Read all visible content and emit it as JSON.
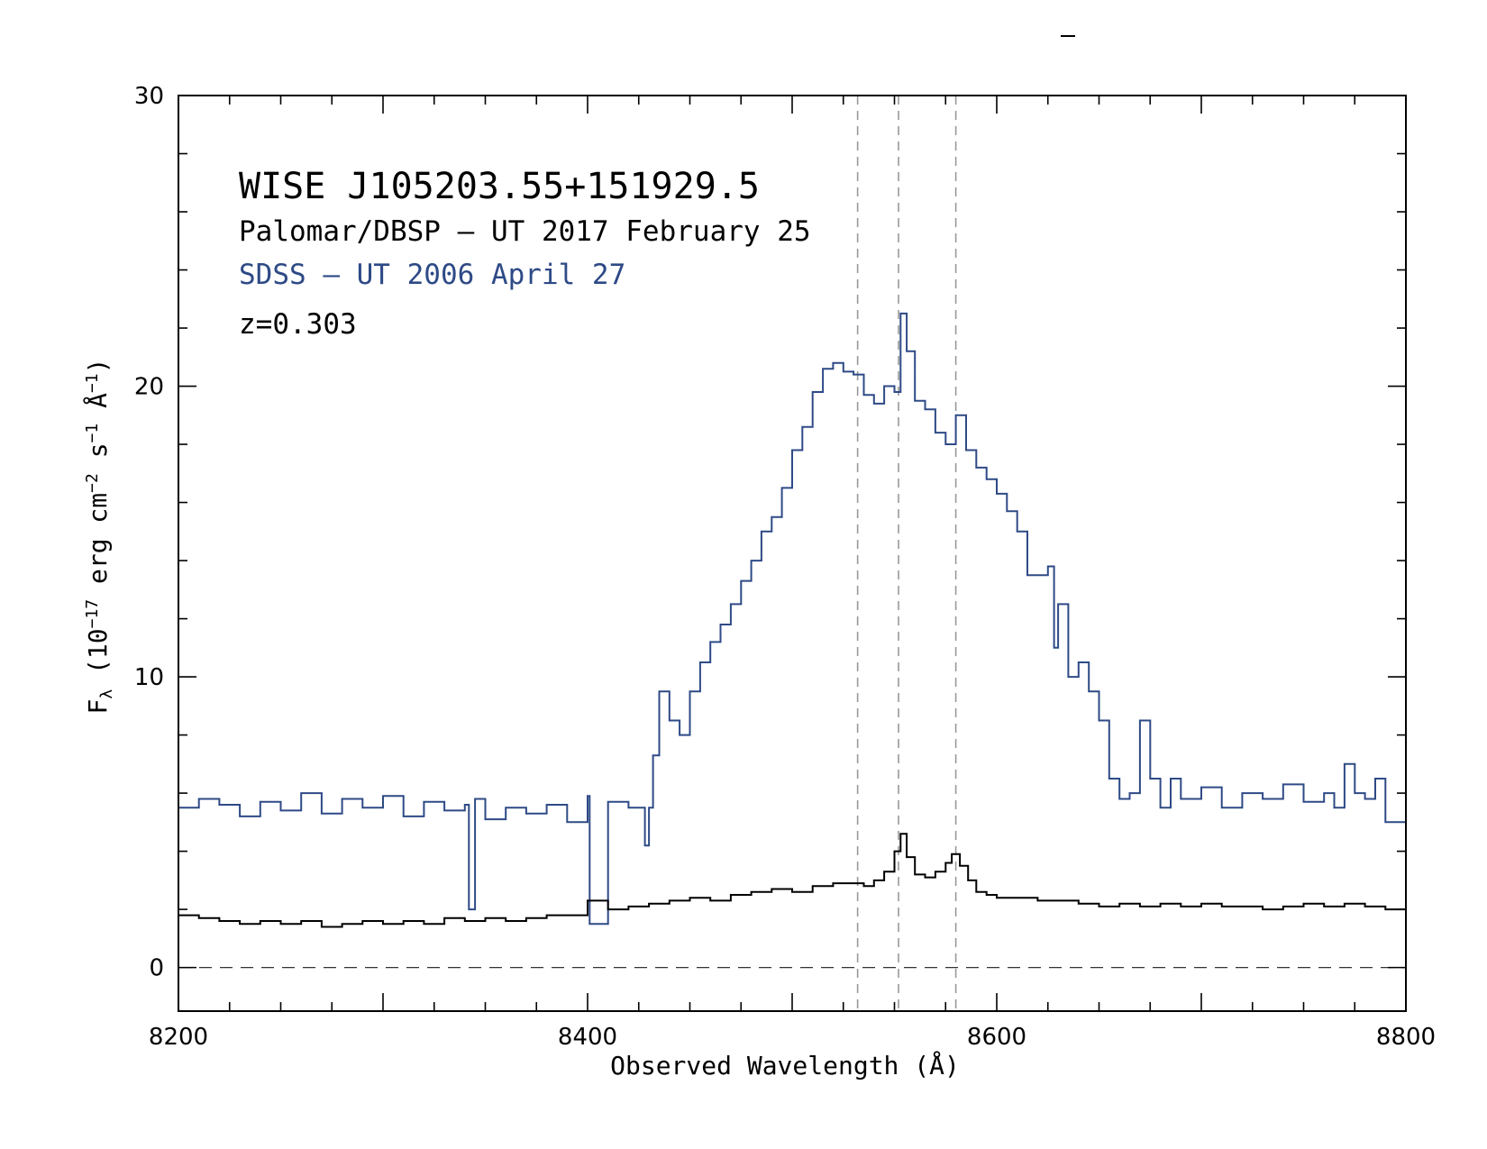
{
  "chart_data": {
    "type": "line",
    "style": "step",
    "xlabel": "Observed Wavelength (Å)",
    "ylabel": "F",
    "ylabel_subscript": "λ",
    "ylabel_units_prefix": " (10",
    "ylabel_exp1": "−17",
    "ylabel_units_mid": " erg cm",
    "ylabel_exp2": "−2",
    "ylabel_units_mid2": " s",
    "ylabel_exp3": "−1",
    "ylabel_units_end": " Å",
    "ylabel_exp4": "−1",
    "ylabel_close": ")",
    "xlim": [
      8200,
      8800
    ],
    "ylim": [
      -1.5,
      30
    ],
    "x_ticks": [
      8200,
      8400,
      8600,
      8800
    ],
    "x_tick_labels": [
      "8200",
      "8400",
      "8600",
      "8800"
    ],
    "y_ticks": [
      0,
      10,
      20,
      30
    ],
    "y_tick_labels": [
      "0",
      "10",
      "20",
      "30"
    ],
    "reference_lines_x": [
      8532,
      8552,
      8580
    ],
    "zero_line": 0,
    "grid": false,
    "legend": "none (text annotations top-left)",
    "annotations": {
      "object": "WISE J105203.55+151929.5",
      "palomar": "Palomar/DBSP – UT 2017 February 25",
      "sdss": "SDSS – UT 2006 April 27",
      "redshift": "z=0.303"
    },
    "series": [
      {
        "name": "SDSS – UT 2006 April 27",
        "color": "#2e4a86",
        "x": [
          8200,
          8210,
          8220,
          8230,
          8240,
          8250,
          8260,
          8270,
          8280,
          8290,
          8300,
          8310,
          8320,
          8330,
          8340,
          8342,
          8345,
          8350,
          8360,
          8370,
          8380,
          8390,
          8400,
          8401,
          8410,
          8420,
          8428,
          8430,
          8432,
          8435,
          8440,
          8445,
          8450,
          8455,
          8460,
          8465,
          8470,
          8475,
          8480,
          8485,
          8490,
          8495,
          8500,
          8505,
          8510,
          8515,
          8520,
          8525,
          8530,
          8535,
          8540,
          8545,
          8550,
          8553,
          8556,
          8560,
          8565,
          8570,
          8575,
          8580,
          8585,
          8590,
          8595,
          8600,
          8605,
          8610,
          8615,
          8620,
          8625,
          8628,
          8630,
          8635,
          8640,
          8645,
          8650,
          8655,
          8660,
          8665,
          8670,
          8675,
          8680,
          8685,
          8690,
          8700,
          8710,
          8720,
          8730,
          8740,
          8750,
          8760,
          8765,
          8770,
          8775,
          8780,
          8785,
          8790,
          8800
        ],
        "y": [
          5.5,
          5.8,
          5.6,
          5.2,
          5.7,
          5.4,
          6.0,
          5.3,
          5.8,
          5.5,
          5.9,
          5.2,
          5.7,
          5.4,
          5.6,
          2.0,
          5.8,
          5.1,
          5.5,
          5.3,
          5.6,
          5.0,
          5.9,
          1.5,
          5.7,
          5.5,
          4.2,
          5.5,
          7.3,
          9.5,
          8.5,
          8.0,
          9.5,
          10.5,
          11.2,
          11.8,
          12.5,
          13.3,
          14.0,
          15.0,
          15.5,
          16.5,
          17.8,
          18.6,
          19.8,
          20.6,
          20.8,
          20.5,
          20.4,
          19.7,
          19.4,
          20.0,
          19.8,
          22.5,
          21.2,
          19.5,
          19.2,
          18.4,
          18.0,
          19.0,
          17.8,
          17.2,
          16.8,
          16.3,
          15.7,
          15.0,
          13.5,
          13.5,
          13.8,
          11.0,
          12.5,
          10.0,
          10.5,
          9.5,
          8.5,
          6.5,
          5.8,
          6.0,
          8.5,
          6.5,
          5.5,
          6.5,
          5.8,
          6.2,
          5.5,
          6.0,
          5.8,
          6.3,
          5.7,
          6.0,
          5.5,
          7.0,
          6.0,
          5.8,
          6.5,
          5.0,
          5.8
        ]
      },
      {
        "name": "Palomar/DBSP – UT 2017 February 25",
        "color": "#000000",
        "x": [
          8200,
          8210,
          8220,
          8230,
          8240,
          8250,
          8260,
          8270,
          8280,
          8290,
          8300,
          8310,
          8320,
          8330,
          8340,
          8350,
          8360,
          8370,
          8380,
          8390,
          8400,
          8410,
          8420,
          8430,
          8440,
          8450,
          8460,
          8470,
          8480,
          8490,
          8500,
          8510,
          8520,
          8530,
          8535,
          8540,
          8545,
          8550,
          8553,
          8556,
          8560,
          8565,
          8570,
          8575,
          8578,
          8582,
          8586,
          8590,
          8595,
          8600,
          8610,
          8620,
          8630,
          8640,
          8650,
          8660,
          8670,
          8680,
          8690,
          8700,
          8710,
          8720,
          8730,
          8740,
          8750,
          8760,
          8770,
          8780,
          8790,
          8800
        ],
        "y": [
          1.8,
          1.7,
          1.6,
          1.5,
          1.6,
          1.5,
          1.6,
          1.4,
          1.5,
          1.6,
          1.5,
          1.6,
          1.5,
          1.7,
          1.6,
          1.7,
          1.6,
          1.7,
          1.8,
          1.8,
          2.3,
          2.0,
          2.1,
          2.2,
          2.3,
          2.4,
          2.3,
          2.5,
          2.6,
          2.7,
          2.6,
          2.8,
          2.9,
          2.9,
          2.8,
          3.0,
          3.3,
          4.0,
          4.6,
          3.8,
          3.2,
          3.1,
          3.3,
          3.6,
          3.9,
          3.5,
          3.0,
          2.6,
          2.5,
          2.4,
          2.4,
          2.3,
          2.3,
          2.2,
          2.1,
          2.2,
          2.1,
          2.2,
          2.1,
          2.2,
          2.1,
          2.1,
          2.0,
          2.1,
          2.2,
          2.1,
          2.2,
          2.1,
          2.0,
          1.9
        ]
      }
    ]
  }
}
